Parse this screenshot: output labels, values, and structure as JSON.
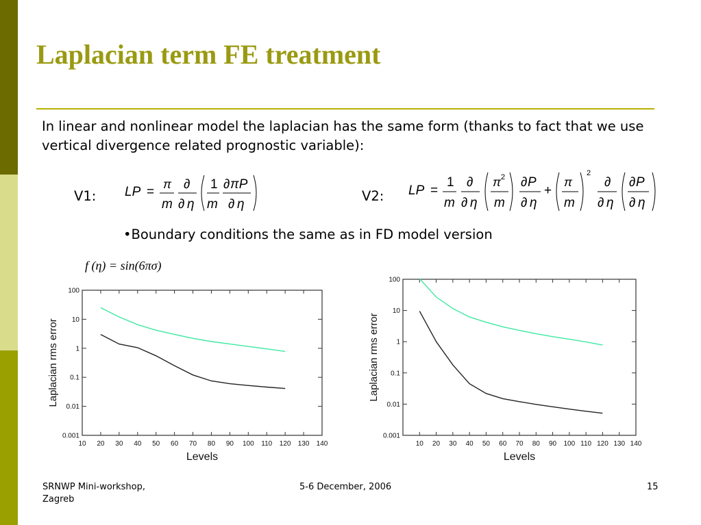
{
  "title": "Laplacian term FE treatment",
  "intro": "In linear and nonlinear model the laplacian has the same form (thanks to fact that we use vertical divergence related prognostic variable):",
  "v1_label": "V1:",
  "v2_label": "V2:",
  "bullet": "•Boundary conditions the same as in FD model version",
  "test_function": "f (η) = sin(6πσ)",
  "footer": {
    "left_line1": "SRNWP Mini-workshop,",
    "left_line2": "Zagreb",
    "center": "5-6 December, 2006",
    "page": "15"
  },
  "colors": {
    "sidebar_dark": "#6b6b00",
    "sidebar_light": "#d9dc8a",
    "sidebar_mid": "#9aa000",
    "title": "#9a9a12",
    "series_upper": "#3ee8a0",
    "series_lower": "#222222"
  },
  "chart_data": [
    {
      "type": "line",
      "title": "",
      "xlabel": "Levels",
      "ylabel": "Laplacian rms error",
      "yscale": "log",
      "xlim": [
        10,
        140
      ],
      "ylim": [
        0.001,
        100
      ],
      "x_ticks": [
        10,
        20,
        30,
        40,
        50,
        60,
        70,
        80,
        90,
        100,
        110,
        120,
        130,
        140
      ],
      "y_ticks": [
        "0.001",
        "0.01",
        "0.1",
        "1",
        "10",
        "100"
      ],
      "series": [
        {
          "x": [
            20,
            30,
            40,
            50,
            60,
            70,
            80,
            90,
            100,
            110,
            120
          ],
          "values": [
            25,
            12,
            6.5,
            4.2,
            3.0,
            2.2,
            1.7,
            1.4,
            1.15,
            0.95,
            0.78
          ],
          "color": "#3ee8a0"
        },
        {
          "x": [
            20,
            30,
            40,
            50,
            60,
            70,
            80,
            90,
            100,
            110,
            120
          ],
          "values": [
            3.0,
            1.4,
            1.05,
            0.55,
            0.25,
            0.12,
            0.075,
            0.06,
            0.052,
            0.046,
            0.041
          ],
          "color": "#222222"
        }
      ]
    },
    {
      "type": "line",
      "title": "",
      "xlabel": "Levels",
      "ylabel": "Laplacian rms error",
      "yscale": "log",
      "xlim": [
        0,
        140
      ],
      "ylim": [
        0.001,
        100
      ],
      "x_ticks": [
        10,
        20,
        30,
        40,
        50,
        60,
        70,
        80,
        90,
        100,
        110,
        120,
        130,
        140
      ],
      "y_ticks": [
        "0.001",
        "0.01",
        "0.1",
        "1",
        "10",
        "100"
      ],
      "series": [
        {
          "x": [
            10,
            20,
            30,
            40,
            50,
            60,
            70,
            80,
            90,
            100,
            110,
            120
          ],
          "values": [
            105,
            27,
            11.5,
            6.2,
            4.2,
            3.0,
            2.3,
            1.8,
            1.45,
            1.2,
            0.98,
            0.78
          ],
          "color": "#3ee8a0"
        },
        {
          "x": [
            10,
            20,
            30,
            40,
            50,
            60,
            70,
            80,
            90,
            100,
            110,
            120
          ],
          "values": [
            9.5,
            1.0,
            0.18,
            0.045,
            0.022,
            0.015,
            0.012,
            0.0098,
            0.0082,
            0.0069,
            0.0059,
            0.0051
          ],
          "color": "#222222"
        }
      ]
    }
  ]
}
